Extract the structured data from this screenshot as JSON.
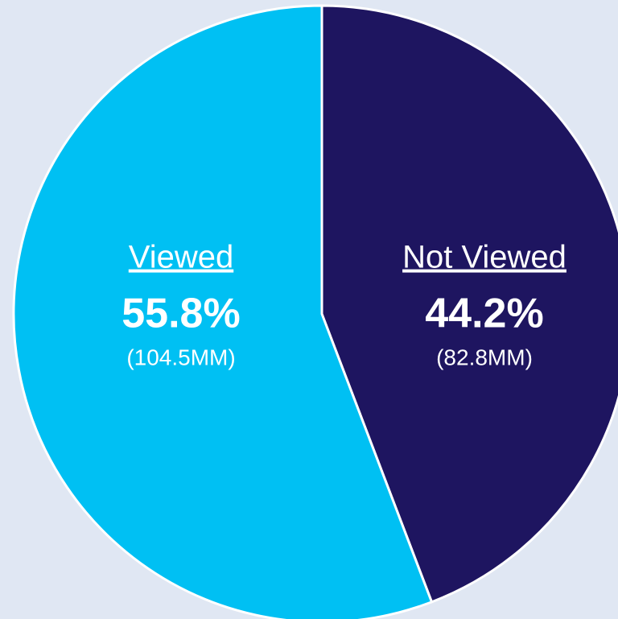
{
  "chart_data": {
    "type": "pie",
    "categories": [
      "Not Viewed",
      "Viewed"
    ],
    "values": [
      44.2,
      55.8
    ],
    "value_labels": [
      "44.2%",
      "55.8%"
    ],
    "amount_labels": [
      "(82.8MM)",
      "(104.5MM)"
    ],
    "colors": [
      "#1e1560",
      "#00c0f3"
    ]
  }
}
